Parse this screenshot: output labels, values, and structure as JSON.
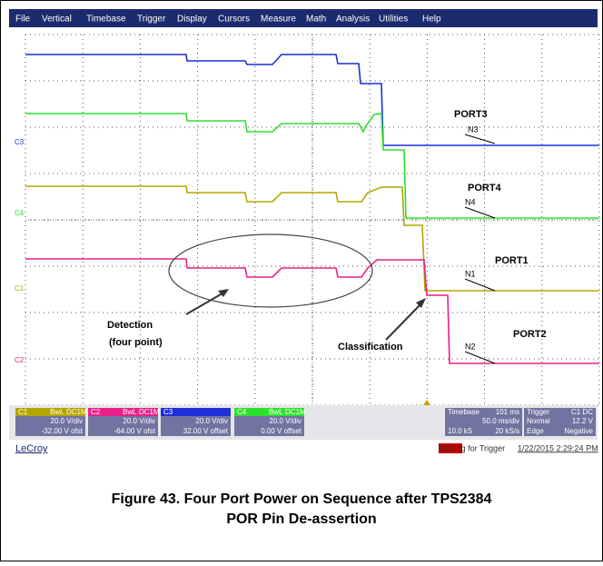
{
  "menu": [
    "File",
    "Vertical",
    "Timebase",
    "Trigger",
    "Display",
    "Cursors",
    "Measure",
    "Math",
    "Analysis",
    "Utilities",
    "Help"
  ],
  "channel_markers": [
    "C3",
    "C4",
    "C1",
    "C2"
  ],
  "annotations": {
    "port3": "PORT3",
    "n3": "N3",
    "port4": "PORT4",
    "n4": "N4",
    "port1": "PORT1",
    "n1": "N1",
    "port2": "PORT2",
    "n2": "N2",
    "detection": [
      "Detection",
      "(four point)"
    ],
    "classification": "Classification"
  },
  "channels": [
    {
      "name": "C1",
      "tags": [
        "BwL",
        "DC1M"
      ],
      "scale": "20.0 V/div",
      "offset": "-32.00 V ofst"
    },
    {
      "name": "C2",
      "tags": [
        "BwL",
        "DC1M"
      ],
      "scale": "20.0 V/div",
      "offset": "-64.00 V ofst"
    },
    {
      "name": "C3",
      "scale": "20.0 V/div",
      "offset": "32.00 V offset"
    },
    {
      "name": "C4",
      "tags": [
        "BwL",
        "DC1M"
      ],
      "scale": "20.0 V/div",
      "offset": "0.00 V offset"
    }
  ],
  "timebase": {
    "label": "Timebase",
    "delay": "101 ms",
    "per_div": "50.0 ms/div",
    "samples": "10.0 kS",
    "rate": "20 kS/s"
  },
  "trigger": {
    "label": "Trigger",
    "source": "C1 DC",
    "mode": "Normal",
    "level": "12.2 V",
    "type": "Edge",
    "slope": "Negative"
  },
  "status": {
    "brand": "LeCroy",
    "waiting": "Waiting for Trigger",
    "timestamp": "1/22/2015 2:29:24 PM"
  },
  "caption": [
    "Figure 43. Four Port Power on Sequence after TPS2384",
    "POR Pin De-assertion"
  ]
}
